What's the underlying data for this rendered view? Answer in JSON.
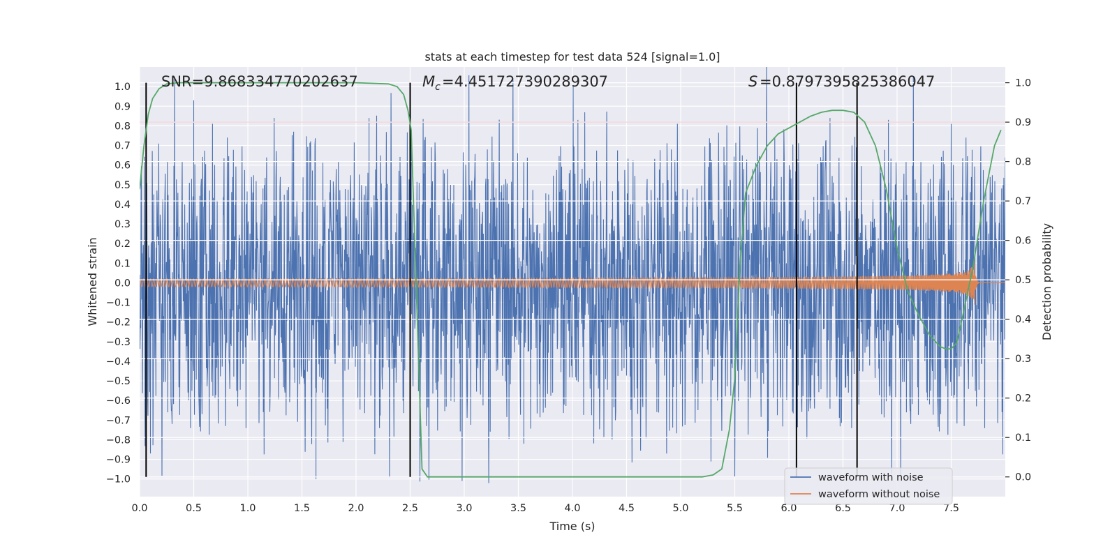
{
  "chart_data": {
    "type": "line",
    "title": "stats at each timestep for test data 524 [signal=1.0]",
    "xlabel": "Time (s)",
    "ylabel": "Whitened strain",
    "y2label": "Detection probability",
    "xlim": [
      0.0,
      8.0
    ],
    "ylim": [
      -1.09,
      1.1
    ],
    "y2lim": [
      -0.05,
      1.04
    ],
    "grid": true,
    "x_ticks": [
      "0.0",
      "0.5",
      "1.0",
      "1.5",
      "2.0",
      "2.5",
      "3.0",
      "3.5",
      "4.0",
      "4.5",
      "5.0",
      "5.5",
      "6.0",
      "6.5",
      "7.0",
      "7.5"
    ],
    "y_ticks": [
      "1.0",
      "0.9",
      "0.8",
      "0.7",
      "0.6",
      "0.5",
      "0.4",
      "0.3",
      "0.2",
      "0.1",
      "0.0",
      "−0.1",
      "−0.2",
      "−0.3",
      "−0.4",
      "−0.5",
      "−0.6",
      "−0.7",
      "−0.8",
      "−0.9",
      "−1.0"
    ],
    "y2_ticks": [
      "1.0",
      "0.9",
      "0.8",
      "0.7",
      "0.6",
      "0.5",
      "0.4",
      "0.3",
      "0.2",
      "0.1",
      "0.0"
    ],
    "annotations": {
      "snr": "SNR=9.868334770202637",
      "mc": "=4.451727390289307",
      "s": "=0.8797395825386047"
    },
    "threshold": 0.9,
    "vertical_lines": [
      0.06,
      2.5,
      6.07,
      6.63
    ],
    "series": [
      {
        "name": "waveform with noise",
        "color": "#4c72b0",
        "axis": "left",
        "noise_amplitude": 0.45,
        "spikes": [
          [
            0.5,
            0.93
          ],
          [
            2.12,
            0.84
          ],
          [
            1.63,
            -1.0
          ],
          [
            0.1,
            -0.87
          ],
          [
            4.05,
            0.83
          ],
          [
            3.55,
            -0.82
          ],
          [
            6.92,
            0.83
          ],
          [
            6.38,
            0.84
          ],
          [
            7.3,
            -0.62
          ],
          [
            0.47,
            -0.74
          ]
        ]
      },
      {
        "name": "waveform without noise",
        "color": "#dd8452",
        "axis": "left",
        "chirp": {
          "amp_start": 0.02,
          "amp_end": 0.22,
          "t_merge": 7.72,
          "freq_start": 32
        }
      },
      {
        "name": "detection probability",
        "color": "#55a868",
        "axis": "right",
        "x": [
          0.0,
          0.04,
          0.08,
          0.12,
          0.18,
          0.25,
          0.35,
          0.5,
          1.0,
          1.5,
          2.0,
          2.3,
          2.38,
          2.44,
          2.48,
          2.51,
          2.56,
          2.61,
          2.66,
          2.72,
          3.0,
          4.0,
          5.0,
          5.2,
          5.3,
          5.38,
          5.45,
          5.5,
          5.55,
          5.6,
          5.7,
          5.8,
          5.9,
          6.0,
          6.1,
          6.2,
          6.3,
          6.4,
          6.5,
          6.6,
          6.7,
          6.8,
          6.9,
          7.0,
          7.1,
          7.2,
          7.3,
          7.4,
          7.45,
          7.5,
          7.55,
          7.6,
          7.7,
          7.8,
          7.9,
          7.96
        ],
        "y": [
          0.73,
          0.84,
          0.92,
          0.96,
          0.985,
          0.997,
          1.0,
          1.0,
          1.0,
          1.0,
          1.0,
          0.997,
          0.99,
          0.97,
          0.93,
          0.88,
          0.45,
          0.02,
          0.0,
          0.0,
          0.0,
          0.0,
          0.0,
          0.0,
          0.005,
          0.02,
          0.12,
          0.25,
          0.55,
          0.72,
          0.79,
          0.84,
          0.87,
          0.885,
          0.9,
          0.915,
          0.925,
          0.93,
          0.93,
          0.925,
          0.9,
          0.84,
          0.73,
          0.58,
          0.47,
          0.41,
          0.36,
          0.33,
          0.325,
          0.325,
          0.34,
          0.4,
          0.53,
          0.7,
          0.84,
          0.88
        ]
      }
    ],
    "legend": {
      "placement": "lower-right"
    }
  }
}
